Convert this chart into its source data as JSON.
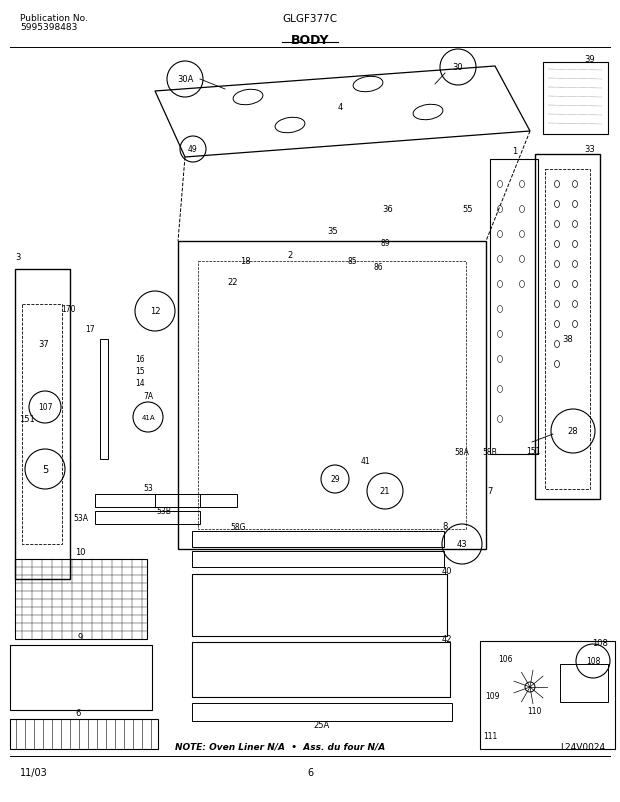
{
  "title_center": "GLGF377C",
  "title_section": "BODY",
  "pub_label": "Publication No.",
  "pub_number": "5995398483",
  "date_label": "11/03",
  "page_label": "6",
  "diagram_label": "L24V0024",
  "note_text": "NOTE: Oven Liner N/A  •  Ass. du four N/A",
  "bg_color": "#ffffff",
  "line_color": "#000000",
  "text_color": "#000000",
  "fig_width": 6.2,
  "fig_height": 8.03,
  "dpi": 100
}
